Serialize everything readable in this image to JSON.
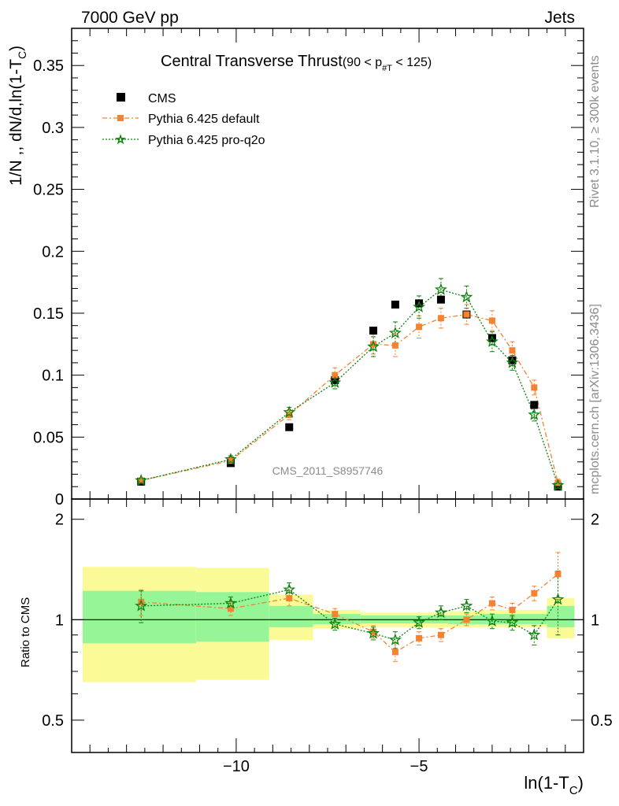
{
  "header": {
    "left_label": "7000 GeV pp",
    "right_label": "Jets",
    "side_label_top": "Rivet 3.1.10, ≥ 300k events",
    "side_label_bottom": "mcplots.cern.ch [arXiv:1306.3436]",
    "watermark": "CMS_2011_S8957746"
  },
  "colors": {
    "cms": "#000000",
    "pythia_default": "#f58230",
    "pythia_proq2o": "#0a820a",
    "band_inner": "#96f596",
    "band_outer": "#fafa96"
  },
  "chart_data": [
    {
      "type": "scatter",
      "title": "Central Transverse Thrust",
      "title_suffix": "(90 < p",
      "title_sub": "#T",
      "title_end": " < 125)",
      "ylabel": "1/N ,, dN/d,ln(1-T",
      "ylabel_sub": "C",
      "ylabel_end": ")",
      "xlim": [
        -14.5,
        -0.5
      ],
      "ylim": [
        0,
        0.38
      ],
      "y_ticks": [
        "0",
        "0.05",
        "0.1",
        "0.15",
        "0.2",
        "0.25",
        "0.3",
        "0.35"
      ],
      "legend": [
        "CMS",
        "Pythia 6.425 default",
        "Pythia 6.425 pro-q2o"
      ],
      "legend_position": "top-left",
      "x": [
        -12.6,
        -10.15,
        -8.55,
        -7.3,
        -6.25,
        -5.65,
        -5.0,
        -4.4,
        -3.7,
        -3.0,
        -2.45,
        -1.85,
        -1.2
      ],
      "series": [
        {
          "name": "CMS",
          "values": [
            0.014,
            0.029,
            0.058,
            0.096,
            0.136,
            0.157,
            0.158,
            0.161,
            0.149,
            0.13,
            0.112,
            0.076,
            0.01
          ]
        },
        {
          "name": "Pythia 6.425 default",
          "values": [
            0.015,
            0.031,
            0.068,
            0.1,
            0.125,
            0.124,
            0.139,
            0.146,
            0.149,
            0.144,
            0.12,
            0.09,
            0.013
          ],
          "errors": [
            0.002,
            0.003,
            0.004,
            0.006,
            0.008,
            0.009,
            0.009,
            0.008,
            0.008,
            0.008,
            0.007,
            0.006,
            0.003
          ]
        },
        {
          "name": "Pythia 6.425 pro-q2o",
          "values": [
            0.015,
            0.032,
            0.07,
            0.094,
            0.123,
            0.134,
            0.155,
            0.169,
            0.163,
            0.127,
            0.11,
            0.068,
            0.011
          ],
          "errors": [
            0.002,
            0.003,
            0.004,
            0.005,
            0.008,
            0.009,
            0.009,
            0.009,
            0.009,
            0.008,
            0.006,
            0.005,
            0.003
          ]
        }
      ]
    },
    {
      "type": "line",
      "ylabel": "Ratio to CMS",
      "xlabel": "ln(1-T",
      "xlabel_sub": "C",
      "xlabel_end": ")",
      "log_y": true,
      "ylim": [
        0.4,
        2.3
      ],
      "y_ticks": [
        "0.5",
        "1",
        "2"
      ],
      "x_ticks": [
        "−10",
        "−5"
      ],
      "x_tick_values": [
        -10,
        -5
      ],
      "xlim": [
        -14.5,
        -0.5
      ],
      "x": [
        -12.6,
        -10.15,
        -8.55,
        -7.3,
        -6.25,
        -5.65,
        -5.0,
        -4.4,
        -3.7,
        -3.0,
        -2.45,
        -1.85,
        -1.2
      ],
      "bands": [
        {
          "x_range": [
            -14.2,
            -11.1
          ],
          "inner": [
            0.85,
            1.22
          ],
          "outer": [
            0.65,
            1.44
          ]
        },
        {
          "x_range": [
            -11.1,
            -9.1
          ],
          "inner": [
            0.86,
            1.21
          ],
          "outer": [
            0.66,
            1.43
          ]
        },
        {
          "x_range": [
            -9.1,
            -7.9
          ],
          "inner": [
            0.95,
            1.1
          ],
          "outer": [
            0.87,
            1.19
          ]
        },
        {
          "x_range": [
            -7.9,
            -6.6
          ],
          "inner": [
            0.97,
            1.04
          ],
          "outer": [
            0.94,
            1.07
          ]
        },
        {
          "x_range": [
            -6.6,
            -4.2
          ],
          "inner": [
            0.975,
            1.03
          ],
          "outer": [
            0.95,
            1.05
          ]
        },
        {
          "x_range": [
            -4.2,
            -3.3
          ],
          "inner": [
            0.97,
            1.03
          ],
          "outer": [
            0.95,
            1.06
          ]
        },
        {
          "x_range": [
            -3.3,
            -1.5
          ],
          "inner": [
            0.97,
            1.04
          ],
          "outer": [
            0.95,
            1.07
          ]
        },
        {
          "x_range": [
            -1.5,
            -0.75
          ],
          "inner": [
            0.95,
            1.1
          ],
          "outer": [
            0.88,
            1.16
          ]
        }
      ],
      "series": [
        {
          "name": "Pythia 6.425 default",
          "values": [
            1.13,
            1.08,
            1.16,
            1.04,
            0.92,
            0.8,
            0.88,
            0.9,
            1.0,
            1.12,
            1.07,
            1.2,
            1.37
          ],
          "errors": [
            0.1,
            0.05,
            0.06,
            0.04,
            0.04,
            0.05,
            0.04,
            0.04,
            0.04,
            0.05,
            0.05,
            0.06,
            0.22
          ]
        },
        {
          "name": "Pythia 6.425 pro-q2o",
          "values": [
            1.1,
            1.12,
            1.23,
            0.97,
            0.91,
            0.87,
            0.98,
            1.05,
            1.1,
            0.99,
            0.98,
            0.9,
            1.15
          ],
          "errors": [
            0.12,
            0.05,
            0.06,
            0.04,
            0.04,
            0.05,
            0.04,
            0.05,
            0.05,
            0.05,
            0.05,
            0.06,
            0.25
          ]
        }
      ]
    }
  ]
}
